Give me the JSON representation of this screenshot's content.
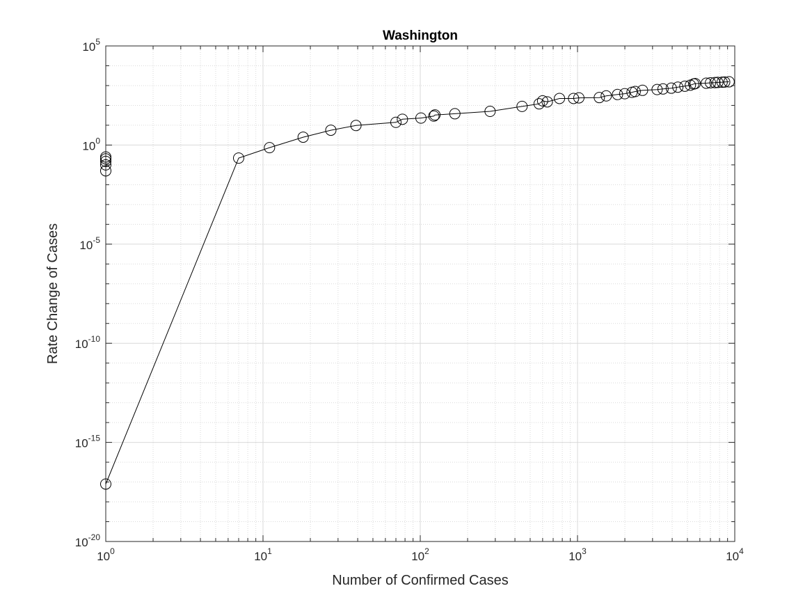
{
  "chart_data": {
    "type": "scatter",
    "title": "Washington",
    "xlabel": "Number of Confirmed Cases",
    "ylabel": "Rate Change of Cases",
    "xscale": "log",
    "yscale": "log",
    "xlim": [
      1,
      10000
    ],
    "ylim": [
      1e-20,
      100000
    ],
    "grid": true,
    "minor_grid": true,
    "x_ticks": [
      {
        "base": "10",
        "exp": "0",
        "value": 1
      },
      {
        "base": "10",
        "exp": "1",
        "value": 10
      },
      {
        "base": "10",
        "exp": "2",
        "value": 100
      },
      {
        "base": "10",
        "exp": "3",
        "value": 1000
      },
      {
        "base": "10",
        "exp": "4",
        "value": 10000
      }
    ],
    "y_ticks": [
      {
        "base": "10",
        "exp": "5",
        "value": 100000
      },
      {
        "base": "10",
        "exp": "0",
        "value": 1
      },
      {
        "base": "10",
        "exp": "-5",
        "value": 1e-05
      },
      {
        "base": "10",
        "exp": "-10",
        "value": 1e-10
      },
      {
        "base": "10",
        "exp": "-15",
        "value": 1e-15
      },
      {
        "base": "10",
        "exp": "-20",
        "value": 1e-20
      }
    ],
    "colors": {
      "line": "#000000",
      "marker": "#000000",
      "grid": "#d9d9d9",
      "axis": "#262626"
    },
    "marker": "circle-open",
    "series": [
      {
        "x": [
          1,
          7,
          11,
          18,
          27,
          39,
          70,
          77,
          101,
          122,
          124,
          166,
          278,
          444,
          570,
          600,
          642,
          768,
          944,
          1020,
          1376,
          1523,
          1796,
          1996,
          2221,
          2328,
          2591,
          3207,
          3498,
          3949,
          4344,
          4814,
          5221,
          5484,
          5609,
          6592,
          7005,
          7483,
          7802,
          8312,
          8629,
          9202
        ],
        "y": [
          7.9e-18,
          0.22,
          0.74,
          2.5,
          5.6,
          9.7,
          14,
          20,
          23,
          29,
          33,
          38,
          50,
          89,
          120,
          170,
          151,
          224,
          224,
          240,
          249,
          302,
          354,
          389,
          457,
          501,
          575,
          631,
          676,
          741,
          832,
          933,
          1047,
          1202,
          1259,
          1318,
          1380,
          1413,
          1445,
          1479,
          1513,
          1549
        ]
      },
      {
        "x": [
          1,
          1,
          1,
          1,
          1
        ],
        "y": [
          0.05,
          0.1,
          0.15,
          0.2,
          0.25
        ]
      }
    ]
  }
}
